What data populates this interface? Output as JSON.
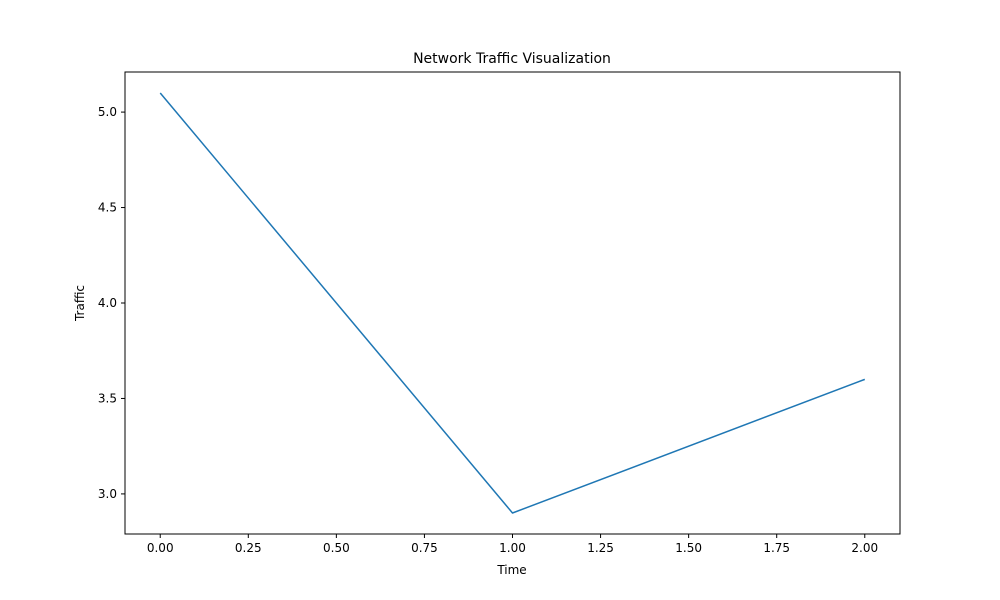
{
  "chart_data": {
    "type": "line",
    "title": "Network Traffic Visualization",
    "xlabel": "Time",
    "ylabel": "Traffic",
    "xlim": [
      -0.1,
      2.1
    ],
    "ylim": [
      2.79,
      5.21
    ],
    "grid": false,
    "xticks": [
      0.0,
      0.25,
      0.5,
      0.75,
      1.0,
      1.25,
      1.5,
      1.75,
      2.0
    ],
    "xtick_labels": [
      "0.00",
      "0.25",
      "0.50",
      "0.75",
      "1.00",
      "1.25",
      "1.50",
      "1.75",
      "2.00"
    ],
    "yticks": [
      3.0,
      3.5,
      4.0,
      4.5,
      5.0
    ],
    "ytick_labels": [
      "3.0",
      "3.5",
      "4.0",
      "4.5",
      "5.0"
    ],
    "series": [
      {
        "color": "#1f77b4",
        "x": [
          0,
          1,
          2
        ],
        "y": [
          5.1,
          2.9,
          3.6
        ]
      }
    ]
  }
}
